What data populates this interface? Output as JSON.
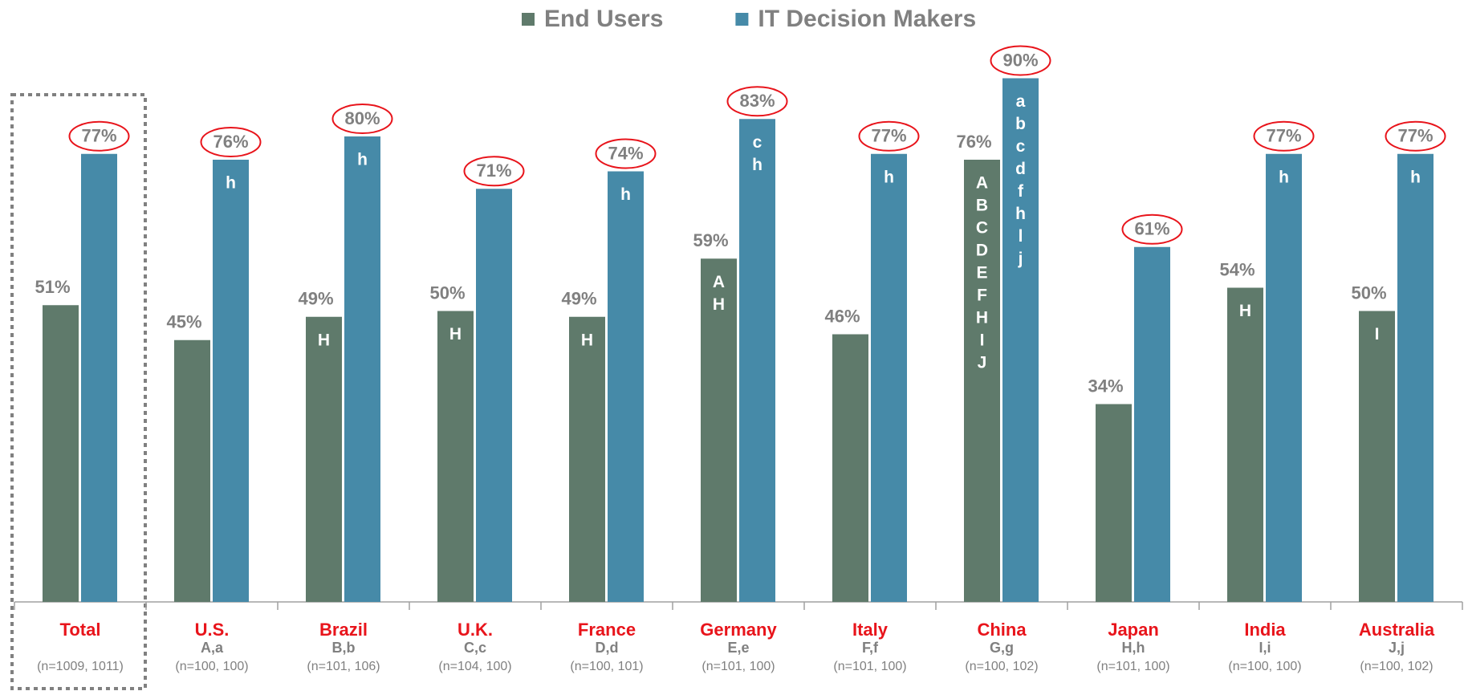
{
  "chart_data": {
    "type": "bar",
    "categories": [
      "Total",
      "U.S.",
      "Brazil",
      "U.K.",
      "France",
      "Germany",
      "Italy",
      "China",
      "Japan",
      "India",
      "Australia"
    ],
    "category_codes": [
      null,
      "A,a",
      "B,b",
      "C,c",
      "D,d",
      "E,e",
      "F,f",
      "G,g",
      "H,h",
      "I,i",
      "J,j"
    ],
    "sample_sizes": [
      "(n=1009, 1011)",
      "(n=100, 100)",
      "(n=101, 106)",
      "(n=104, 100)",
      "(n=100, 101)",
      "(n=101, 100)",
      "(n=101, 100)",
      "(n=100, 102)",
      "(n=101, 100)",
      "(n=100, 100)",
      "(n=100, 102)"
    ],
    "legend": "top",
    "series": [
      {
        "name": "End Users",
        "color": "#5f7a6b",
        "values": [
          51,
          45,
          49,
          50,
          49,
          59,
          46,
          76,
          34,
          54,
          50
        ],
        "value_labels": [
          "51%",
          "45%",
          "49%",
          "50%",
          "49%",
          "59%",
          "46%",
          "76%",
          "34%",
          "54%",
          "50%"
        ],
        "letters": [
          [],
          [],
          [
            "H"
          ],
          [
            "H"
          ],
          [
            "H"
          ],
          [
            "A",
            "H"
          ],
          [],
          [
            "A",
            "B",
            "C",
            "D",
            "E",
            "F",
            "H",
            "I",
            "J"
          ],
          [],
          [
            "H"
          ],
          [
            "I"
          ]
        ]
      },
      {
        "name": "IT Decision Makers",
        "color": "#468aa8",
        "values": [
          77,
          76,
          80,
          71,
          74,
          83,
          77,
          90,
          61,
          77,
          77
        ],
        "value_labels": [
          "77%",
          "76%",
          "80%",
          "71%",
          "74%",
          "83%",
          "77%",
          "90%",
          "61%",
          "77%",
          "77%"
        ],
        "letters": [
          [],
          [
            "h"
          ],
          [
            "h"
          ],
          [],
          [
            "h"
          ],
          [
            "c",
            "h"
          ],
          [
            "h"
          ],
          [
            "a",
            "b",
            "c",
            "d",
            "f",
            "h",
            "l",
            "j"
          ],
          [],
          [
            "h"
          ],
          [
            "h"
          ]
        ]
      }
    ]
  }
}
